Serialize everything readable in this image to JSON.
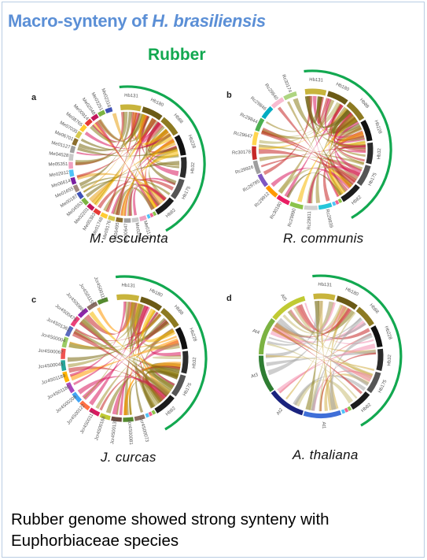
{
  "title_prefix": "Macro-synteny of ",
  "title_species": "H. brasiliensis",
  "rubber_label": "Rubber",
  "caption_line1": "Rubber genome showed strong synteny with",
  "caption_line2": "Euphorbiaceae species",
  "panels": [
    {
      "letter": "a",
      "species": "M. esculenta",
      "hb_labels": [
        "Hb131",
        "Hb180",
        "Hb88",
        "Hb228",
        "Hb32",
        "Hb175",
        "Hb82"
      ],
      "other_labels": [
        "Me01175",
        "Me02541",
        "Me00647",
        "Me06495",
        "Me09176",
        "Me01748",
        "Me05383",
        "Me02201",
        "Me04553",
        "Me00187",
        "Me01655",
        "Me06614",
        "Me02912",
        "Me05351",
        "Me04528",
        "Me01127",
        "Me06701",
        "Me07035",
        "Me08765",
        "Me00914",
        "Me02048",
        "Me03251",
        "Me02316"
      ]
    },
    {
      "letter": "b",
      "species": "R. communis",
      "hb_labels": [
        "Hb131",
        "Hb180",
        "Hb88",
        "Hb228",
        "Hb32",
        "Hb175",
        "Hb82"
      ],
      "other_labels": [
        "Rc29839",
        "Rc29811",
        "Rc29890",
        "Rc30180",
        "Rc29912",
        "Rc29785",
        "Rc29926",
        "Rc30178",
        "Rc29647",
        "Rc29844",
        "Rc29846",
        "Rc29840",
        "Rc30174"
      ]
    },
    {
      "letter": "c",
      "species": "J. curcas",
      "hb_labels": [
        "Hb131",
        "Hb180",
        "Hb88",
        "Hb228",
        "Hb32",
        "Hb175",
        "Hb82"
      ],
      "other_labels": [
        "Jcr4S00073",
        "Jcr4S00081",
        "Jcr4S00135",
        "Jcr4S00168",
        "Jcr4S00117",
        "Jcr4S00122",
        "Jcr4S00208",
        "Jcr4S01180",
        "Jcr4S01189",
        "Jcr4S00045",
        "Jcr4S00067",
        "Jcr4S00004",
        "Jcr4S01361",
        "Jcr4S00479",
        "Jcr4S00860",
        "Jcr4S01155",
        "Jcr4S00111"
      ]
    },
    {
      "letter": "d",
      "species": "A. thaliana",
      "hb_labels": [
        "Hb131",
        "Hb180",
        "Hb88",
        "Hb228",
        "Hb32",
        "Hb175",
        "Hb82"
      ],
      "other_labels": [
        "At1",
        "At2",
        "At3",
        "At4",
        "At5"
      ]
    }
  ],
  "colors": {
    "title": "#5b8fd6",
    "rubber": "#12a850",
    "ribbons": [
      "#c62828",
      "#8b7d1c",
      "#a0922c",
      "#d81b60",
      "#f5b800",
      "#e07b00",
      "#b71c1c"
    ]
  }
}
